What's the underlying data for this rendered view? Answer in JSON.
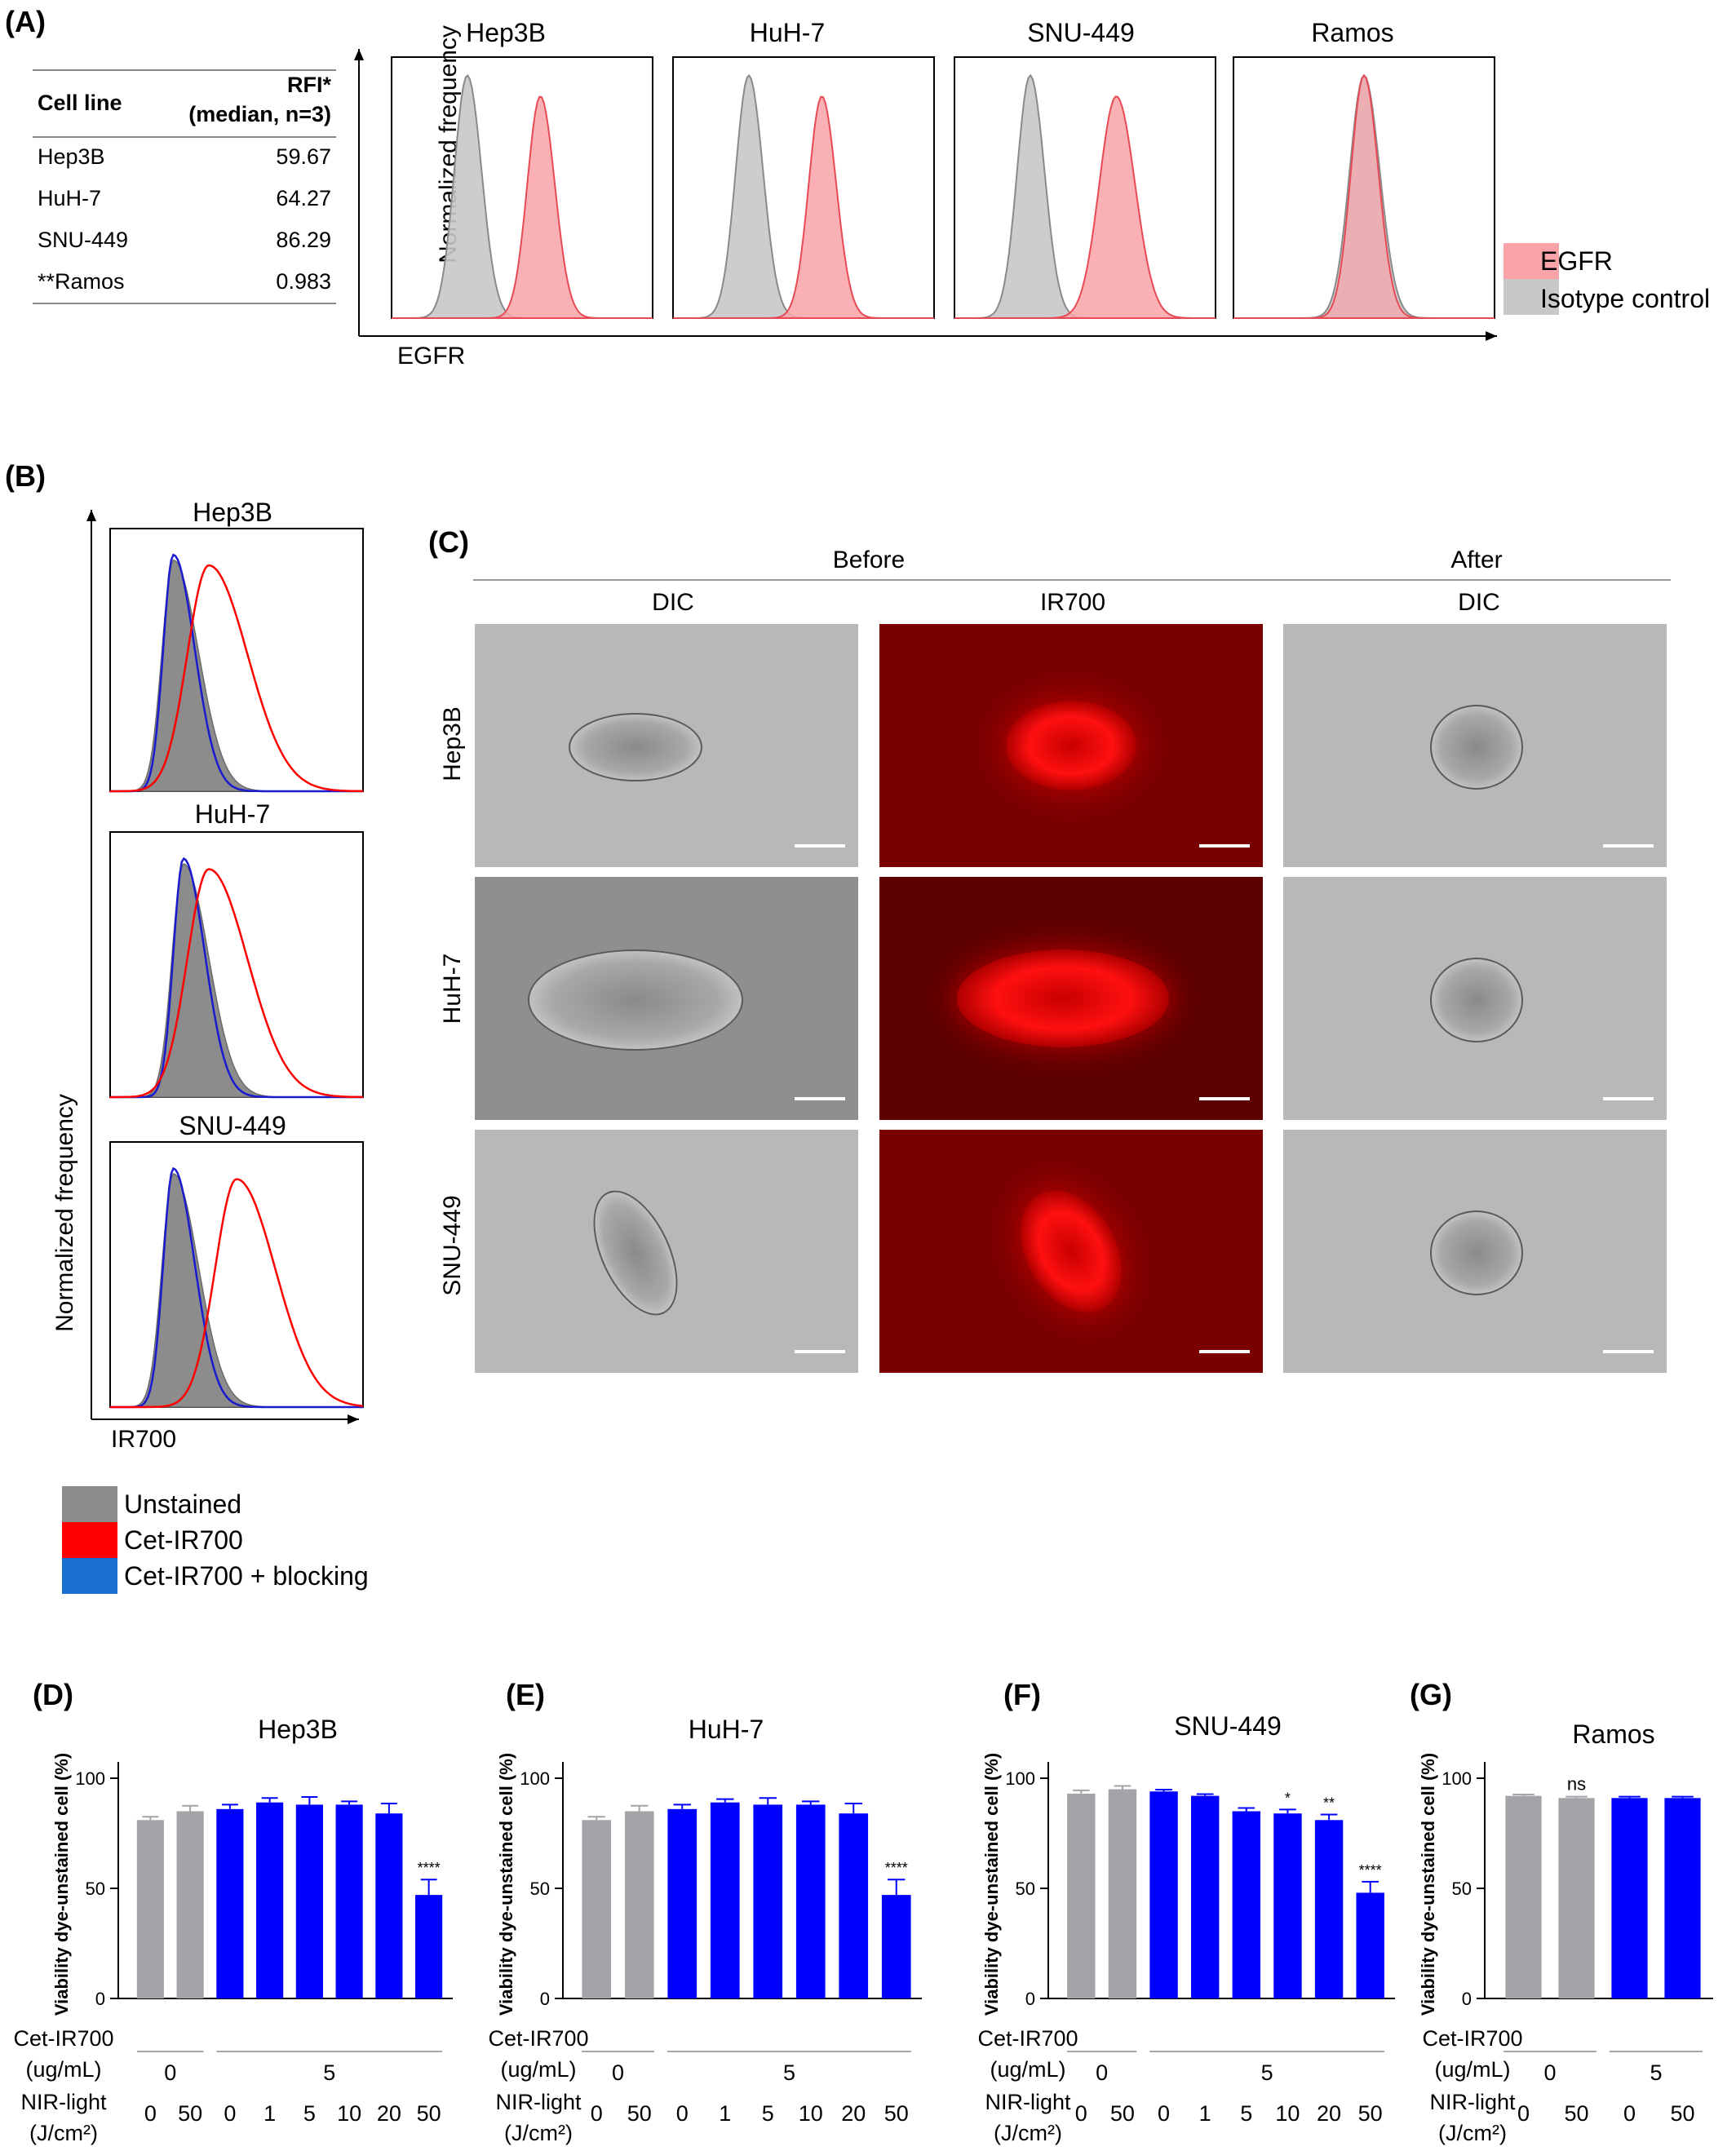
{
  "panel_labels": {
    "A": "(A)",
    "B": "(B)",
    "C": "(C)",
    "D": "(D)",
    "E": "(E)",
    "F": "(F)",
    "G": "(G)"
  },
  "panel_a": {
    "table": {
      "header_col1": "Cell line",
      "header_col2_line1": "RFI*",
      "header_col2_line2": "(median, n=3)",
      "rows": [
        {
          "cell": "Hep3B",
          "rfi": "59.67"
        },
        {
          "cell": "HuH-7",
          "rfi": "64.27"
        },
        {
          "cell": "SNU-449",
          "rfi": "86.29"
        },
        {
          "cell": "**Ramos",
          "rfi": "0.983"
        }
      ]
    },
    "ylabel": "Normalized frequency",
    "xlabel": "EGFR",
    "legend": [
      {
        "label": "EGFR",
        "color": "#f8a3a8"
      },
      {
        "label": "Isotype control",
        "color": "#c8c8c8"
      }
    ]
  },
  "panel_b": {
    "ylabel": "Normalized frequency",
    "xlabel": "IR700",
    "legend": [
      {
        "label": "Unstained",
        "color": "#8c8c8c"
      },
      {
        "label": "Cet-IR700",
        "color": "#ff0000"
      },
      {
        "label": "Cet-IR700 + blocking",
        "color": "#1a6fcf"
      }
    ]
  },
  "panel_c": {
    "group_before": "Before",
    "group_after": "After",
    "col_labels": [
      "DIC",
      "IR700",
      "DIC"
    ],
    "row_labels": [
      "Hep3B",
      "HuH-7",
      "SNU-449"
    ]
  },
  "bar_axis_label": "Viability dye-unstained cell (%)",
  "x_rows": {
    "cet_label_line1": "Cet-IR700",
    "cet_label_line2": "(ug/mL)",
    "nir_label_line1": "NIR-light",
    "nir_label_line2": "(J/cm²)"
  },
  "chart_data": [
    {
      "type": "line",
      "panel": "A",
      "title": "Hep3B",
      "xlabel": "EGFR",
      "ylabel": "Normalized frequency",
      "series": [
        {
          "name": "Isotype control",
          "peak_x": 0.29
        },
        {
          "name": "EGFR",
          "peak_x": 0.57
        }
      ]
    },
    {
      "type": "line",
      "panel": "A",
      "title": "HuH-7",
      "xlabel": "EGFR",
      "ylabel": "Normalized frequency",
      "series": [
        {
          "name": "Isotype control",
          "peak_x": 0.29
        },
        {
          "name": "EGFR",
          "peak_x": 0.57
        }
      ]
    },
    {
      "type": "line",
      "panel": "A",
      "title": "SNU-449",
      "xlabel": "EGFR",
      "ylabel": "Normalized frequency",
      "series": [
        {
          "name": "Isotype control",
          "peak_x": 0.29
        },
        {
          "name": "EGFR",
          "peak_x": 0.62
        }
      ]
    },
    {
      "type": "line",
      "panel": "A",
      "title": "Ramos",
      "xlabel": "EGFR",
      "ylabel": "Normalized frequency",
      "series": [
        {
          "name": "Isotype control",
          "peak_x": 0.5
        },
        {
          "name": "EGFR",
          "peak_x": 0.5
        }
      ]
    },
    {
      "type": "line",
      "panel": "B",
      "title": "Hep3B",
      "xlabel": "IR700",
      "ylabel": "Normalized frequency",
      "series": [
        {
          "name": "Unstained",
          "peak_x": 0.25
        },
        {
          "name": "Cet-IR700",
          "peak_x": 0.39
        },
        {
          "name": "Cet-IR700 + blocking",
          "peak_x": 0.25
        }
      ]
    },
    {
      "type": "line",
      "panel": "B",
      "title": "HuH-7",
      "xlabel": "IR700",
      "ylabel": "Normalized frequency",
      "series": [
        {
          "name": "Unstained",
          "peak_x": 0.29
        },
        {
          "name": "Cet-IR700",
          "peak_x": 0.39
        },
        {
          "name": "Cet-IR700 + blocking",
          "peak_x": 0.29
        }
      ]
    },
    {
      "type": "line",
      "panel": "B",
      "title": "SNU-449",
      "xlabel": "IR700",
      "ylabel": "Normalized frequency",
      "series": [
        {
          "name": "Unstained",
          "peak_x": 0.25
        },
        {
          "name": "Cet-IR700",
          "peak_x": 0.5
        },
        {
          "name": "Cet-IR700 + blocking",
          "peak_x": 0.25
        }
      ]
    },
    {
      "type": "bar",
      "panel": "D",
      "title": "Hep3B",
      "ylabel": "Viability dye-unstained cell (%)",
      "ylim": [
        0,
        100
      ],
      "yticks": [
        0,
        50,
        100
      ],
      "categories": [
        "0",
        "50",
        "0",
        "1",
        "5",
        "10",
        "20",
        "50"
      ],
      "cet": [
        "0",
        "0",
        "5",
        "5",
        "5",
        "5",
        "5",
        "5"
      ],
      "values": [
        81,
        85,
        86,
        89,
        88,
        88,
        84,
        47
      ],
      "errors": [
        1.5,
        2.5,
        2,
        2,
        3.5,
        1.5,
        4.5,
        7
      ],
      "colors": [
        "#a3a3a8",
        "#a3a3a8",
        "#0000ff",
        "#0000ff",
        "#0000ff",
        "#0000ff",
        "#0000ff",
        "#0000ff"
      ],
      "annotations": [
        "",
        "",
        "",
        "",
        "",
        "",
        "",
        "****"
      ]
    },
    {
      "type": "bar",
      "panel": "E",
      "title": "HuH-7",
      "ylabel": "Viability dye-unstained cell (%)",
      "ylim": [
        0,
        100
      ],
      "yticks": [
        0,
        50,
        100
      ],
      "categories": [
        "0",
        "50",
        "0",
        "1",
        "5",
        "10",
        "20",
        "50"
      ],
      "cet": [
        "0",
        "0",
        "5",
        "5",
        "5",
        "5",
        "5",
        "5"
      ],
      "values": [
        81,
        85,
        86,
        89,
        88,
        88,
        84,
        47
      ],
      "errors": [
        1.5,
        2.5,
        2,
        1.5,
        3,
        1.5,
        4.5,
        7
      ],
      "colors": [
        "#a3a3a8",
        "#a3a3a8",
        "#0000ff",
        "#0000ff",
        "#0000ff",
        "#0000ff",
        "#0000ff",
        "#0000ff"
      ],
      "annotations": [
        "",
        "",
        "",
        "",
        "",
        "",
        "",
        "****"
      ]
    },
    {
      "type": "bar",
      "panel": "F",
      "title": "SNU-449",
      "ylabel": "Viability dye-unstained cell (%)",
      "ylim": [
        0,
        100
      ],
      "yticks": [
        0,
        50,
        100
      ],
      "categories": [
        "0",
        "50",
        "0",
        "1",
        "5",
        "10",
        "20",
        "50"
      ],
      "cet": [
        "0",
        "0",
        "5",
        "5",
        "5",
        "5",
        "5",
        "5"
      ],
      "values": [
        93,
        95,
        94,
        92,
        85,
        84,
        81,
        48
      ],
      "errors": [
        1.5,
        1.5,
        0.8,
        0.8,
        1.5,
        1.8,
        2.5,
        5
      ],
      "colors": [
        "#a3a3a8",
        "#a3a3a8",
        "#0000ff",
        "#0000ff",
        "#0000ff",
        "#0000ff",
        "#0000ff",
        "#0000ff"
      ],
      "annotations": [
        "",
        "",
        "",
        "",
        "",
        "*",
        "**",
        "****"
      ]
    },
    {
      "type": "bar",
      "panel": "G",
      "title": "Ramos",
      "ylabel": "Viability dye-unstained cell (%)",
      "ylim": [
        0,
        100
      ],
      "yticks": [
        0,
        50,
        100
      ],
      "categories": [
        "0",
        "50",
        "0",
        "50"
      ],
      "cet": [
        "0",
        "0",
        "5",
        "5"
      ],
      "values": [
        92,
        91,
        91,
        91
      ],
      "errors": [
        0.6,
        0.6,
        0.6,
        0.6
      ],
      "colors": [
        "#a3a3a8",
        "#a3a3a8",
        "#0000ff",
        "#0000ff"
      ],
      "annotations": [
        "",
        "ns",
        "",
        ""
      ]
    }
  ]
}
